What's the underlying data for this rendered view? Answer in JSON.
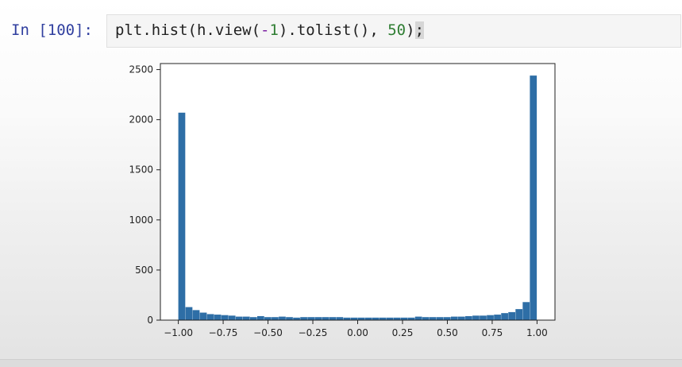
{
  "notebook": {
    "prompt": "In [100]:",
    "code": {
      "p1": "plt.hist(h.view(",
      "p2": "-",
      "p3": "1",
      "p4": ").tolist(), ",
      "p5": "50",
      "p6": ")",
      "p7": ";"
    }
  },
  "chart_data": {
    "type": "bar",
    "title": "",
    "xlabel": "",
    "ylabel": "",
    "xlim": [
      -1.1,
      1.1
    ],
    "ylim": [
      0,
      2560
    ],
    "bin_start": -1.0,
    "bin_width": 0.04,
    "color": "#2e6ea6",
    "values": [
      2070,
      130,
      100,
      75,
      60,
      55,
      50,
      45,
      35,
      35,
      30,
      40,
      30,
      30,
      35,
      30,
      25,
      30,
      30,
      30,
      30,
      30,
      30,
      25,
      25,
      25,
      25,
      25,
      25,
      25,
      25,
      25,
      25,
      35,
      30,
      30,
      30,
      30,
      35,
      35,
      40,
      45,
      45,
      50,
      55,
      70,
      80,
      110,
      180,
      2440
    ],
    "x_ticks": [
      -1.0,
      -0.75,
      -0.5,
      -0.25,
      0.0,
      0.25,
      0.5,
      0.75,
      1.0
    ],
    "x_tick_labels": [
      "−1.00",
      "−0.75",
      "−0.50",
      "−0.25",
      "0.00",
      "0.25",
      "0.50",
      "0.75",
      "1.00"
    ],
    "y_ticks": [
      0,
      500,
      1000,
      1500,
      2000,
      2500
    ],
    "y_tick_labels": [
      "0",
      "500",
      "1000",
      "1500",
      "2000",
      "2500"
    ],
    "grid": false
  }
}
